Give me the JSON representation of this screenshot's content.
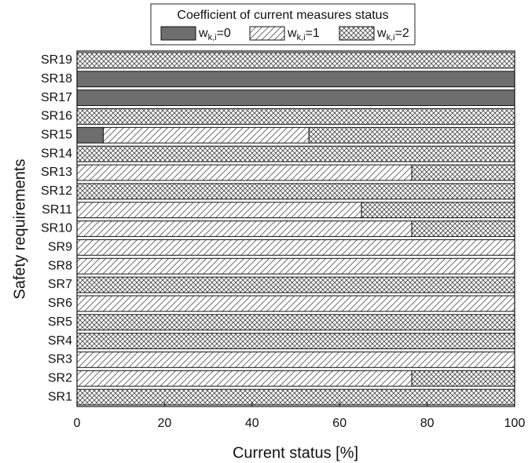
{
  "chart_data": {
    "type": "stacked-barh",
    "legend_title": "Coefficient of current measures status",
    "x_label": "Current status [%]",
    "y_label": "Safety requirements",
    "categories": [
      "SR1",
      "SR2",
      "SR3",
      "SR4",
      "SR5",
      "SR6",
      "SR7",
      "SR8",
      "SR9",
      "SR10",
      "SR11",
      "SR12",
      "SR13",
      "SR14",
      "SR15",
      "SR16",
      "SR17",
      "SR18",
      "SR19"
    ],
    "series": [
      {
        "name": "wk,i=0",
        "color": "#6e6e6e",
        "pattern": "solid",
        "values": [
          0,
          0,
          0,
          0,
          0,
          0,
          0,
          0,
          0,
          0,
          0,
          0,
          0,
          0,
          6,
          0,
          100,
          100,
          0
        ]
      },
      {
        "name": "wk,i=1",
        "color": "#444444",
        "pattern": "diagonal",
        "values": [
          0,
          76.5,
          100,
          0,
          0,
          100,
          0,
          100,
          100,
          76.5,
          65,
          0,
          76.5,
          0,
          47,
          0,
          0,
          0,
          0
        ]
      },
      {
        "name": "wk,i=2",
        "color": "#444444",
        "pattern": "crosshatch",
        "values": [
          100,
          23.5,
          0,
          100,
          100,
          0,
          100,
          0,
          0,
          23.5,
          35,
          100,
          23.5,
          100,
          47,
          100,
          0,
          0,
          100
        ]
      }
    ],
    "xlim": [
      0,
      100
    ],
    "xticks": [
      0,
      20,
      40,
      60,
      80,
      100
    ],
    "legend": "top"
  }
}
